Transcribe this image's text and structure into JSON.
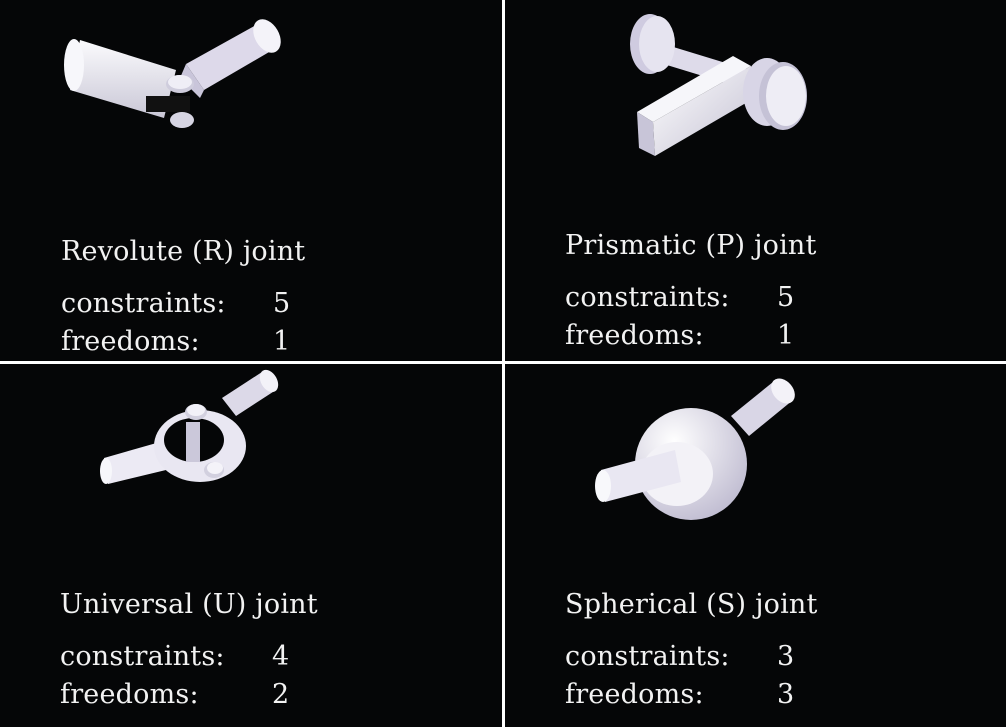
{
  "panels": [
    {
      "title": "Revolute (R) joint",
      "constraints_label": "constraints:",
      "constraints": "5",
      "freedoms_label": "freedoms:",
      "freedoms": "1",
      "icon": "revolute-joint"
    },
    {
      "title": "Prismatic (P) joint",
      "constraints_label": "constraints:",
      "constraints": "5",
      "freedoms_label": "freedoms:",
      "freedoms": "1",
      "icon": "prismatic-joint"
    },
    {
      "title": "Universal (U) joint",
      "constraints_label": "constraints:",
      "constraints": "4",
      "freedoms_label": "freedoms:",
      "freedoms": "2",
      "icon": "universal-joint"
    },
    {
      "title": "Spherical (S) joint",
      "constraints_label": "constraints:",
      "constraints": "3",
      "freedoms_label": "freedoms:",
      "freedoms": "3",
      "icon": "spherical-joint"
    }
  ],
  "colors": {
    "background": "#050607",
    "divider": "#ffffff",
    "text": "#f2f2f2",
    "part": "#ecebf4",
    "part_shadow": "#b9b6c8"
  }
}
